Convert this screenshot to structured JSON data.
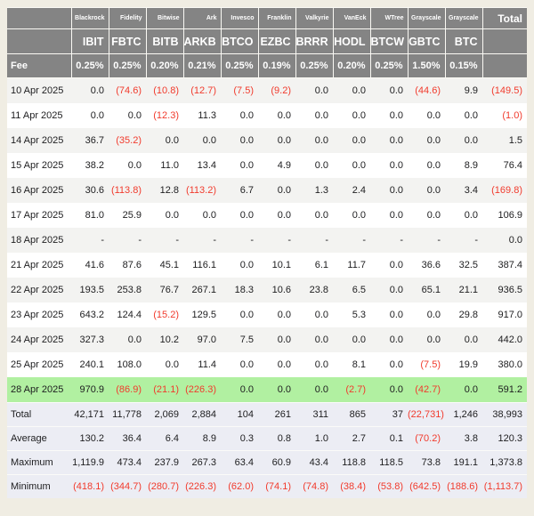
{
  "table": {
    "corner_label": "",
    "total_header_label": "Total",
    "fee_label": "Fee",
    "providers": [
      "Blackrock",
      "Fidelity",
      "Bitwise",
      "Ark",
      "Invesco",
      "Franklin",
      "Valkyrie",
      "VanEck",
      "WTree",
      "Grayscale",
      "Grayscale"
    ],
    "tickers": [
      "IBIT",
      "FBTC",
      "BITB",
      "ARKB",
      "BTCO",
      "EZBC",
      "BRRR",
      "HODL",
      "BTCW",
      "GBTC",
      "BTC"
    ],
    "fees": [
      "0.25%",
      "0.25%",
      "0.20%",
      "0.21%",
      "0.25%",
      "0.19%",
      "0.25%",
      "0.20%",
      "0.25%",
      "1.50%",
      "0.15%"
    ],
    "rows": [
      {
        "label": "10 Apr 2025",
        "type": "data",
        "values": [
          "0.0",
          "(74.6)",
          "(10.8)",
          "(12.7)",
          "(7.5)",
          "(9.2)",
          "0.0",
          "0.0",
          "0.0",
          "(44.6)",
          "9.9",
          "(149.5)"
        ]
      },
      {
        "label": "11 Apr 2025",
        "type": "data",
        "values": [
          "0.0",
          "0.0",
          "(12.3)",
          "11.3",
          "0.0",
          "0.0",
          "0.0",
          "0.0",
          "0.0",
          "0.0",
          "0.0",
          "(1.0)"
        ]
      },
      {
        "label": "14 Apr 2025",
        "type": "data",
        "values": [
          "36.7",
          "(35.2)",
          "0.0",
          "0.0",
          "0.0",
          "0.0",
          "0.0",
          "0.0",
          "0.0",
          "0.0",
          "0.0",
          "1.5"
        ]
      },
      {
        "label": "15 Apr 2025",
        "type": "data",
        "values": [
          "38.2",
          "0.0",
          "11.0",
          "13.4",
          "0.0",
          "4.9",
          "0.0",
          "0.0",
          "0.0",
          "0.0",
          "8.9",
          "76.4"
        ]
      },
      {
        "label": "16 Apr 2025",
        "type": "data",
        "values": [
          "30.6",
          "(113.8)",
          "12.8",
          "(113.2)",
          "6.7",
          "0.0",
          "1.3",
          "2.4",
          "0.0",
          "0.0",
          "3.4",
          "(169.8)"
        ]
      },
      {
        "label": "17 Apr 2025",
        "type": "data",
        "values": [
          "81.0",
          "25.9",
          "0.0",
          "0.0",
          "0.0",
          "0.0",
          "0.0",
          "0.0",
          "0.0",
          "0.0",
          "0.0",
          "106.9"
        ]
      },
      {
        "label": "18 Apr 2025",
        "type": "data",
        "values": [
          "-",
          "-",
          "-",
          "-",
          "-",
          "-",
          "-",
          "-",
          "-",
          "-",
          "-",
          "0.0"
        ]
      },
      {
        "label": "21 Apr 2025",
        "type": "data",
        "values": [
          "41.6",
          "87.6",
          "45.1",
          "116.1",
          "0.0",
          "10.1",
          "6.1",
          "11.7",
          "0.0",
          "36.6",
          "32.5",
          "387.4"
        ]
      },
      {
        "label": "22 Apr 2025",
        "type": "data",
        "values": [
          "193.5",
          "253.8",
          "76.7",
          "267.1",
          "18.3",
          "10.6",
          "23.8",
          "6.5",
          "0.0",
          "65.1",
          "21.1",
          "936.5"
        ]
      },
      {
        "label": "23 Apr 2025",
        "type": "data",
        "values": [
          "643.2",
          "124.4",
          "(15.2)",
          "129.5",
          "0.0",
          "0.0",
          "0.0",
          "5.3",
          "0.0",
          "0.0",
          "29.8",
          "917.0"
        ]
      },
      {
        "label": "24 Apr 2025",
        "type": "data",
        "values": [
          "327.3",
          "0.0",
          "10.2",
          "97.0",
          "7.5",
          "0.0",
          "0.0",
          "0.0",
          "0.0",
          "0.0",
          "0.0",
          "442.0"
        ]
      },
      {
        "label": "25 Apr 2025",
        "type": "data",
        "values": [
          "240.1",
          "108.0",
          "0.0",
          "11.4",
          "0.0",
          "0.0",
          "0.0",
          "8.1",
          "0.0",
          "(7.5)",
          "19.9",
          "380.0"
        ]
      },
      {
        "label": "28 Apr 2025",
        "type": "highlight",
        "values": [
          "970.9",
          "(86.9)",
          "(21.1)",
          "(226.3)",
          "0.0",
          "0.0",
          "0.0",
          "(2.7)",
          "0.0",
          "(42.7)",
          "0.0",
          "591.2"
        ]
      }
    ],
    "summary": [
      {
        "label": "Total",
        "values": [
          "42,171",
          "11,778",
          "2,069",
          "2,884",
          "104",
          "261",
          "311",
          "865",
          "37",
          "(22,731)",
          "1,246",
          "38,993"
        ]
      },
      {
        "label": "Average",
        "values": [
          "130.2",
          "36.4",
          "6.4",
          "8.9",
          "0.3",
          "0.8",
          "1.0",
          "2.7",
          "0.1",
          "(70.2)",
          "3.8",
          "120.3"
        ]
      },
      {
        "label": "Maximum",
        "values": [
          "1,119.9",
          "473.4",
          "237.9",
          "267.3",
          "63.4",
          "60.9",
          "43.4",
          "118.8",
          "118.5",
          "73.8",
          "191.1",
          "1,373.8"
        ]
      },
      {
        "label": "Minimum",
        "values": [
          "(418.1)",
          "(344.7)",
          "(280.7)",
          "(226.3)",
          "(62.0)",
          "(74.1)",
          "(74.8)",
          "(38.4)",
          "(53.8)",
          "(642.5)",
          "(188.6)",
          "(1,113.7)"
        ]
      }
    ],
    "colors": {
      "page_background": "#f0ede3",
      "header_background": "#848484",
      "header_text": "#ffffff",
      "stripe_row": "#f3f3f1",
      "highlight_row": "#b1f0a1",
      "summary_row": "#ecedf4",
      "negative_text": "#f13b2d",
      "positive_text": "#1d1d1f"
    }
  }
}
